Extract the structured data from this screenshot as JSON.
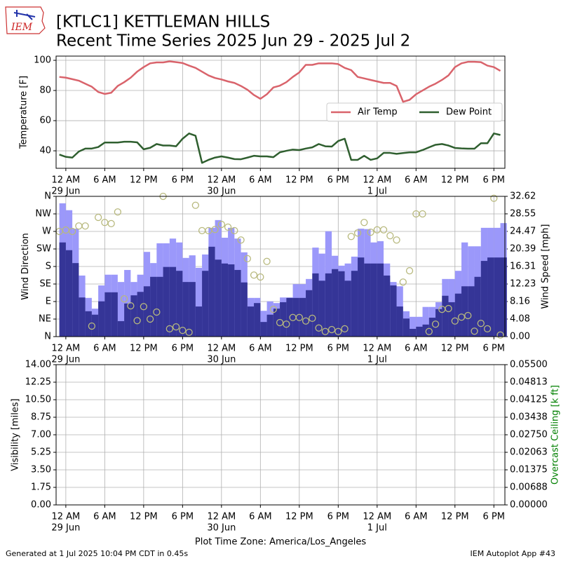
{
  "header": {
    "logo": "IEM",
    "title": "[KTLC1] KETTLEMAN HILLS",
    "subtitle": "Recent Time Series 2025 Jun 29 - 2025 Jul 2"
  },
  "footer": {
    "generated": "Generated at 1 Jul 2025 10:04 PM CDT in 0.45s",
    "app": "IEM Autoplot App #43"
  },
  "chart_data": [
    {
      "type": "line",
      "ylabel": "Temperature [F]",
      "grid": true,
      "legend": "center right",
      "xlim": [
        -1.5,
        67.7
      ],
      "xticks": [
        {
          "value": 0,
          "label": "12 AM"
        },
        {
          "value": 6,
          "label": "6 AM"
        },
        {
          "value": 12,
          "label": "12 PM"
        },
        {
          "value": 18,
          "label": "6 PM"
        },
        {
          "value": 24,
          "label": "12 AM"
        },
        {
          "value": 30,
          "label": "6 AM"
        },
        {
          "value": 36,
          "label": "12 PM"
        },
        {
          "value": 42,
          "label": "6 PM"
        },
        {
          "value": 48,
          "label": "12 AM"
        },
        {
          "value": 54,
          "label": "6 AM"
        },
        {
          "value": 60,
          "label": "12 PM"
        },
        {
          "value": 66,
          "label": "6 PM"
        }
      ],
      "xdates": [
        {
          "value": 0,
          "label": "29 Jun"
        },
        {
          "value": 24,
          "label": "30 Jun"
        },
        {
          "value": 48,
          "label": "1 Jul"
        }
      ],
      "x": [
        -1,
        0,
        1,
        2,
        3,
        4,
        5,
        6,
        7,
        8,
        9,
        10,
        11,
        12,
        13,
        14,
        15,
        16,
        17,
        18,
        19,
        20,
        21,
        22,
        23,
        24,
        25,
        26,
        27,
        28,
        29,
        30,
        31,
        32,
        33,
        34,
        35,
        36,
        37,
        38,
        39,
        40,
        41,
        42,
        43,
        44,
        45,
        46,
        47,
        48,
        49,
        50,
        51,
        52,
        53,
        54,
        55,
        56,
        57,
        58,
        59,
        60,
        61,
        62,
        63,
        64,
        65,
        66,
        67
      ],
      "ylim": [
        28.4,
        102.8
      ],
      "yticks": [
        40,
        60,
        80,
        100
      ],
      "series": [
        {
          "name": "Air Temp",
          "color": "#d9636b",
          "values": [
            89,
            88.5,
            87.5,
            86.5,
            84.5,
            82.5,
            79,
            77.7,
            78.5,
            83,
            85.5,
            88.5,
            92.5,
            95.5,
            98,
            98.6,
            98.6,
            99.3,
            98.8,
            98.2,
            96.5,
            95,
            92.5,
            90,
            88.3,
            87.3,
            86,
            85,
            83,
            80.5,
            77,
            74.5,
            77.5,
            82,
            83.2,
            85.5,
            89,
            92,
            97,
            97,
            98,
            98,
            98,
            97.5,
            95,
            93.5,
            89,
            88,
            87,
            86,
            85,
            85,
            83,
            72.5,
            73.8,
            77.5,
            80,
            82.5,
            84.5,
            87,
            90,
            95.5,
            98,
            99,
            99,
            98.8,
            96.5,
            95.5,
            93
          ]
        },
        {
          "name": "Dew Point",
          "color": "#2f5f2f",
          "values": [
            37.5,
            36,
            35.5,
            39.5,
            41.5,
            41.5,
            42.5,
            45.5,
            45.5,
            45.5,
            46,
            46,
            45.6,
            41,
            42,
            44.5,
            43.5,
            43.5,
            43,
            48,
            51.5,
            50,
            32,
            34,
            35.5,
            36.3,
            35.5,
            34.5,
            34.4,
            35.5,
            36.7,
            36.3,
            36.3,
            35.8,
            39,
            40,
            40.8,
            40.5,
            41.5,
            42.3,
            44.5,
            43,
            42.8,
            46.5,
            48,
            34,
            34,
            36.7,
            34,
            35,
            38.6,
            38.6,
            38,
            38.5,
            39,
            39,
            40.5,
            42.3,
            44,
            44.5,
            43.5,
            41.9,
            41.6,
            41.4,
            41.4,
            45,
            45,
            51.5,
            50.5
          ]
        }
      ]
    },
    {
      "type": "bar",
      "ylabel": "Wind Direction",
      "y2label": "Wind Speed [mph]",
      "grid": true,
      "ylim": [
        0,
        360
      ],
      "yticks": [
        {
          "value": 0,
          "label": "N"
        },
        {
          "value": 45,
          "label": "NE"
        },
        {
          "value": 90,
          "label": "E"
        },
        {
          "value": 135,
          "label": "SE"
        },
        {
          "value": 180,
          "label": "S"
        },
        {
          "value": 225,
          "label": "SW"
        },
        {
          "value": 270,
          "label": "W"
        },
        {
          "value": 315,
          "label": "NW"
        },
        {
          "value": 360,
          "label": "N"
        }
      ],
      "y2lim": [
        0,
        32.62
      ],
      "y2ticks": [
        {
          "value": 0,
          "label": "0.00"
        },
        4.08,
        8.16,
        12.23,
        16.31,
        20.39,
        24.47,
        28.55,
        32.62
      ],
      "series": [
        {
          "axis": "y2",
          "color": "#9b98fa",
          "values": [
            31,
            29.4,
            25.1,
            14.2,
            9,
            6.5,
            11.9,
            14.4,
            14.4,
            12.7,
            15.5,
            12.7,
            14.4,
            19.7,
            17.1,
            21.7,
            21.7,
            22.8,
            21.9,
            18.3,
            18.9,
            16,
            19.1,
            25.3,
            27.1,
            23,
            25.3,
            22.8,
            19.6,
            9,
            9,
            6,
            8.2,
            7.8,
            9.1,
            9.1,
            12.2,
            12.2,
            13.4,
            20.7,
            19.3,
            24.5,
            18.8,
            16.5,
            17,
            18.6,
            25.1,
            25,
            21.9,
            22.2,
            17,
            12.7,
            11.7,
            5.9,
            4.6,
            4.6,
            6.9,
            6.9,
            8,
            13.4,
            13.4,
            15.3,
            21.9,
            21,
            21,
            25.3,
            25.3,
            25.3,
            26.4
          ]
        },
        {
          "axis": "y2",
          "color": "#353597",
          "values": [
            21.9,
            20.1,
            17.1,
            9.1,
            5.9,
            5.1,
            8.2,
            10.3,
            10.3,
            3.6,
            7.7,
            9.6,
            10.4,
            11.7,
            13.9,
            13.9,
            16.2,
            16.2,
            15.3,
            12.7,
            12.7,
            7,
            15.3,
            20.9,
            17.9,
            17,
            16.8,
            15.5,
            12.6,
            7,
            7.8,
            3.4,
            5.1,
            6.5,
            8,
            9,
            9,
            9,
            10.8,
            14.7,
            13,
            14.7,
            15.7,
            15.2,
            13,
            15.3,
            18.4,
            17,
            17,
            17,
            14.2,
            11.9,
            7,
            4.2,
            1.8,
            2.3,
            2.8,
            4.4,
            6.4,
            9.5,
            8,
            10,
            11.7,
            11.7,
            13.9,
            17.6,
            18.4,
            18.4,
            18.4
          ]
        },
        {
          "type": "scatter",
          "color": "#b8b97e",
          "values": [
            270,
            273.6,
            270,
            284,
            284,
            27,
            306,
            293,
            290,
            320,
            97,
            79,
            41,
            77,
            45,
            63,
            360,
            20,
            25,
            16,
            11,
            337,
            272,
            272,
            275,
            288,
            281,
            272,
            248,
            200,
            158,
            153,
            193,
            70,
            36,
            32,
            49,
            49,
            40,
            47,
            22,
            13,
            18,
            13,
            20,
            257,
            266,
            293,
            268,
            274,
            274,
            259,
            248,
            140,
            169,
            315,
            315,
            13,
            32,
            70,
            72,
            40,
            50,
            54,
            14,
            34,
            20,
            355,
            4
          ]
        }
      ]
    },
    {
      "type": "line",
      "ylabel": "Visibility [miles]",
      "y2label": "Overcast Ceiling [k ft]",
      "y2label_color": "#008000",
      "grid": true,
      "xlabel": "Plot Time Zone: America/Los_Angeles",
      "ylim": [
        0,
        14
      ],
      "yticks": [
        {
          "value": 0,
          "label": "0.00"
        },
        {
          "value": 1.75,
          "label": "1.75"
        },
        {
          "value": 3.5,
          "label": "3.50"
        },
        {
          "value": 5.25,
          "label": "5.25"
        },
        {
          "value": 7,
          "label": "7.00"
        },
        {
          "value": 8.75,
          "label": "8.75"
        },
        {
          "value": 10.5,
          "label": "10.50"
        },
        {
          "value": 12.25,
          "label": "12.25"
        },
        {
          "value": 14,
          "label": "14.00"
        }
      ],
      "y2lim": [
        0,
        0.055
      ],
      "y2ticks": [
        {
          "value": 0,
          "label": "0.00000"
        },
        {
          "value": 0.006875,
          "label": "0.00688"
        },
        {
          "value": 0.01375,
          "label": "0.01375"
        },
        {
          "value": 0.020625,
          "label": "0.02063"
        },
        {
          "value": 0.0275,
          "label": "0.02750"
        },
        {
          "value": 0.034375,
          "label": "0.03438"
        },
        {
          "value": 0.04125,
          "label": "0.04125"
        },
        {
          "value": 0.048125,
          "label": "0.04813"
        },
        {
          "value": 0.055,
          "label": "0.05500"
        }
      ],
      "series": []
    }
  ]
}
